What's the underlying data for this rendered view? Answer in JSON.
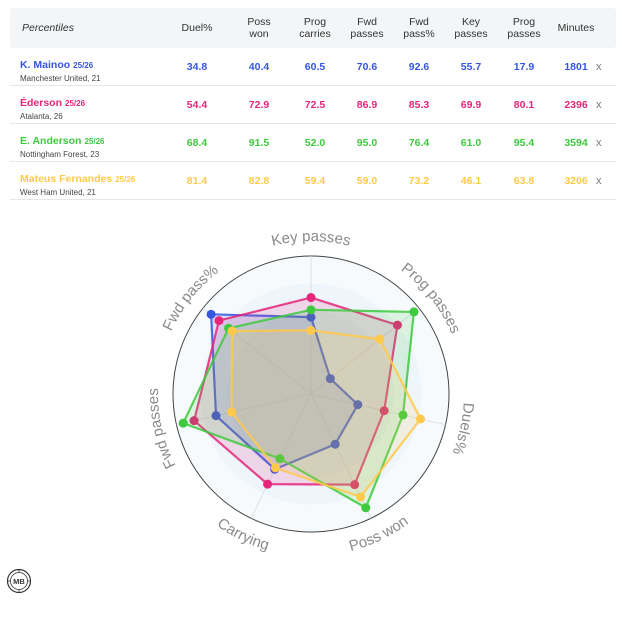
{
  "table": {
    "headers": [
      "Percentiles",
      "Duel%",
      "Poss\nwon",
      "Prog\ncarries",
      "Fwd\npasses",
      "Fwd\npass%",
      "Key\npasses",
      "Prog\npasses",
      "Minutes"
    ],
    "remove_label": "x",
    "rows": [
      {
        "name": "K. Mainoo",
        "season": "25/26",
        "team": "Manchester United, 21",
        "color": "#3556e0",
        "cells": [
          "34.8",
          "40.4",
          "60.5",
          "70.6",
          "92.6",
          "55.7",
          "17.9",
          "1801"
        ]
      },
      {
        "name": "Éderson",
        "season": "25/26",
        "team": "Atalanta, 26",
        "color": "#e5267a",
        "cells": [
          "54.4",
          "72.9",
          "72.5",
          "86.9",
          "85.3",
          "69.9",
          "80.1",
          "2396"
        ]
      },
      {
        "name": "E. Anderson",
        "season": "25/26",
        "team": "Nottingham Forest, 23",
        "color": "#3fc93f",
        "cells": [
          "68.4",
          "91.5",
          "52.0",
          "95.0",
          "76.4",
          "61.0",
          "95.4",
          "3594"
        ]
      },
      {
        "name": "Mateus Fernandes",
        "season": "25/26",
        "team": "West Ham United, 21",
        "color": "#ffc94a",
        "cells": [
          "81.4",
          "82.8",
          "59.4",
          "59.0",
          "73.2",
          "46.1",
          "63.8",
          "3206"
        ]
      }
    ]
  },
  "chart_data": {
    "type": "radar",
    "axes": [
      "Key passes",
      "Prog passes",
      "Duels%",
      "Poss won",
      "Carrying",
      "Fwd passes",
      "Fwd pass%"
    ],
    "range": [
      0,
      100
    ],
    "grid": true,
    "series": [
      {
        "name": "K. Mainoo 25/26",
        "color": "#3556e0",
        "values": [
          55.7,
          17.9,
          34.8,
          40.4,
          60.5,
          70.6,
          92.6
        ]
      },
      {
        "name": "Éderson 25/26",
        "color": "#e5267a",
        "values": [
          69.9,
          80.1,
          54.4,
          72.9,
          72.5,
          86.9,
          85.3
        ]
      },
      {
        "name": "E. Anderson 25/26",
        "color": "#3fc93f",
        "values": [
          61.0,
          95.4,
          68.4,
          91.5,
          52.0,
          95.0,
          76.4
        ]
      },
      {
        "name": "Mateus Fernandes 25/26",
        "color": "#ffc94a",
        "values": [
          46.1,
          63.8,
          81.4,
          82.8,
          59.4,
          59.0,
          73.2
        ]
      }
    ]
  },
  "logo": {
    "text": "MB",
    "icon": "mb-logo-icon"
  }
}
